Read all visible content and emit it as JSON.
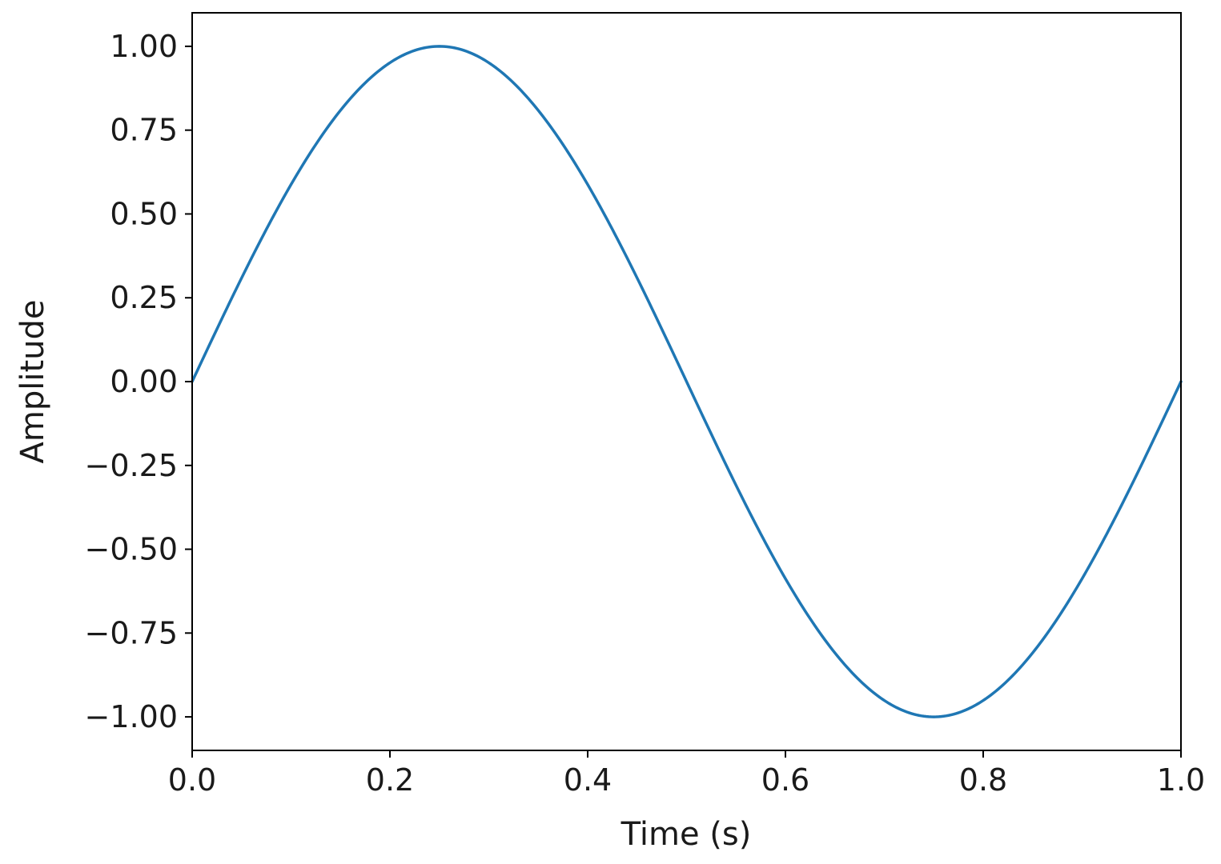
{
  "chart_data": {
    "type": "line",
    "title": "",
    "xlabel": "Time (s)",
    "ylabel": "Amplitude",
    "xlim": [
      0.0,
      1.0
    ],
    "ylim": [
      -1.1,
      1.1
    ],
    "grid": false,
    "x_ticks": [
      0.0,
      0.2,
      0.4,
      0.6,
      0.8,
      1.0
    ],
    "x_tick_labels": [
      "0.0",
      "0.2",
      "0.4",
      "0.6",
      "0.8",
      "1.0"
    ],
    "y_ticks": [
      1.0,
      0.75,
      0.5,
      0.25,
      0.0,
      -0.25,
      -0.5,
      -0.75,
      -1.0
    ],
    "y_tick_labels": [
      "1.00",
      "0.75",
      "0.50",
      "0.25",
      "0.00",
      "−0.25",
      "−0.50",
      "−0.75",
      "−1.00"
    ],
    "series": [
      {
        "color": "#1f77b4",
        "x": [
          0.0,
          0.05,
          0.1,
          0.15,
          0.2,
          0.25,
          0.3,
          0.35,
          0.4,
          0.45,
          0.5,
          0.55,
          0.6,
          0.65,
          0.7,
          0.75,
          0.8,
          0.85,
          0.9,
          0.95,
          1.0
        ],
        "y": [
          0.0,
          0.309,
          0.588,
          0.809,
          0.951,
          1.0,
          0.951,
          0.809,
          0.588,
          0.309,
          0.0,
          -0.309,
          -0.588,
          -0.809,
          -0.951,
          -1.0,
          -0.951,
          -0.809,
          -0.588,
          -0.309,
          0.0
        ]
      }
    ]
  }
}
